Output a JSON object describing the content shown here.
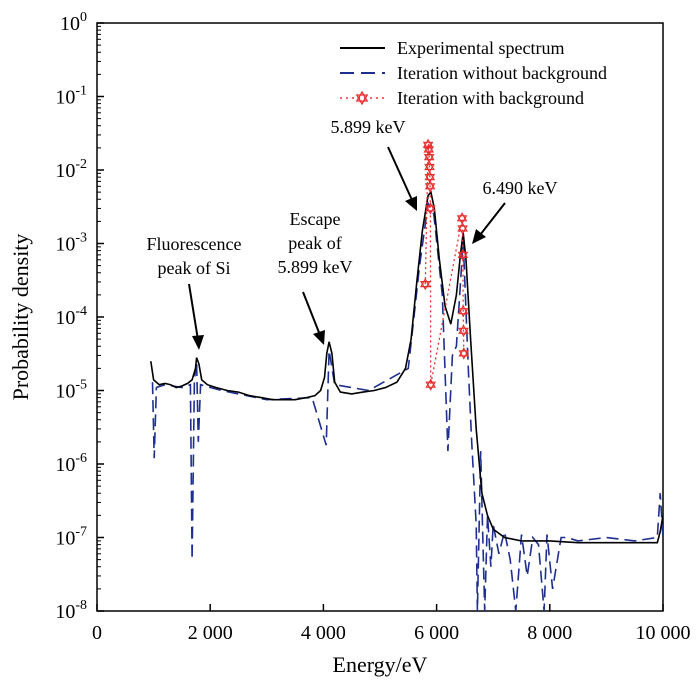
{
  "chart_data": {
    "type": "line",
    "xlabel": "Energy/eV",
    "ylabel": "Probability density",
    "xscale": "linear",
    "yscale": "log",
    "xlim": [
      0,
      10000
    ],
    "ylim": [
      1e-08,
      1
    ],
    "x_ticks": [
      0,
      2000,
      4000,
      6000,
      8000,
      10000
    ],
    "x_tick_labels": [
      "0",
      "2 000",
      "4 000",
      "6 000",
      "8 000",
      "10 000"
    ],
    "y_tick_exponents": [
      0,
      -1,
      -2,
      -3,
      -4,
      -5,
      -6,
      -7,
      -8
    ],
    "y_tick_base": "10",
    "legend_position": "top-right",
    "series": [
      {
        "name": "Experimental spectrum",
        "style": "solid",
        "color": "#000000",
        "points": [
          [
            950,
            2.5e-05
          ],
          [
            1000,
            1.4e-05
          ],
          [
            1100,
            1.2e-05
          ],
          [
            1200,
            1.25e-05
          ],
          [
            1300,
            1.2e-05
          ],
          [
            1400,
            1.1e-05
          ],
          [
            1500,
            1.15e-05
          ],
          [
            1600,
            1.25e-05
          ],
          [
            1680,
            1.4e-05
          ],
          [
            1740,
            2e-05
          ],
          [
            1760,
            2.8e-05
          ],
          [
            1800,
            2.3e-05
          ],
          [
            1850,
            1.4e-05
          ],
          [
            1950,
            1.2e-05
          ],
          [
            2100,
            1.1e-05
          ],
          [
            2300,
            1e-05
          ],
          [
            2500,
            9.5e-06
          ],
          [
            2700,
            8.5e-06
          ],
          [
            2900,
            8e-06
          ],
          [
            3100,
            7.5e-06
          ],
          [
            3300,
            7.5e-06
          ],
          [
            3500,
            7.5e-06
          ],
          [
            3700,
            8e-06
          ],
          [
            3850,
            8.5e-06
          ],
          [
            3950,
            1e-05
          ],
          [
            4020,
            1.5e-05
          ],
          [
            4060,
            3.2e-05
          ],
          [
            4100,
            4.6e-05
          ],
          [
            4150,
            3.2e-05
          ],
          [
            4200,
            1.3e-05
          ],
          [
            4300,
            9.5e-06
          ],
          [
            4500,
            9e-06
          ],
          [
            4700,
            9.5e-06
          ],
          [
            4900,
            1e-05
          ],
          [
            5100,
            1.1e-05
          ],
          [
            5300,
            1.3e-05
          ],
          [
            5450,
            2e-05
          ],
          [
            5550,
            5e-05
          ],
          [
            5650,
            0.0003
          ],
          [
            5750,
            0.0015
          ],
          [
            5850,
            0.0045
          ],
          [
            5900,
            0.005
          ],
          [
            5960,
            0.003
          ],
          [
            6050,
            0.0006
          ],
          [
            6150,
            0.00014
          ],
          [
            6250,
            8e-05
          ],
          [
            6350,
            0.0002
          ],
          [
            6420,
            0.0007
          ],
          [
            6470,
            0.0014
          ],
          [
            6520,
            0.0006
          ],
          [
            6600,
            5e-05
          ],
          [
            6700,
            3e-06
          ],
          [
            6800,
            4e-07
          ],
          [
            6900,
            2e-07
          ],
          [
            7000,
            1.3e-07
          ],
          [
            7200,
            1e-07
          ],
          [
            7500,
            9e-08
          ],
          [
            8000,
            9e-08
          ],
          [
            8500,
            8.5e-08
          ],
          [
            9000,
            8.5e-08
          ],
          [
            9500,
            8.5e-08
          ],
          [
            9900,
            8.5e-08
          ],
          [
            9950,
            1.2e-07
          ],
          [
            10000,
            2e-07
          ]
        ]
      },
      {
        "name": "Iteration without background",
        "style": "dashed",
        "color": "#1f2f8f",
        "points": [
          [
            980,
            1.3e-05
          ],
          [
            1010,
            1.2e-06
          ],
          [
            1050,
            1.1e-05
          ],
          [
            1200,
            1.2e-05
          ],
          [
            1500,
            1.1e-05
          ],
          [
            1650,
            1.2e-05
          ],
          [
            1680,
            5e-08
          ],
          [
            1720,
            1.4e-05
          ],
          [
            1760,
            2.5e-05
          ],
          [
            1790,
            2e-06
          ],
          [
            1830,
            1.2e-05
          ],
          [
            2200,
            1e-05
          ],
          [
            3000,
            7.5e-06
          ],
          [
            3800,
            8e-06
          ],
          [
            4050,
            1.8e-06
          ],
          [
            4100,
            3.5e-05
          ],
          [
            4200,
            1.2e-05
          ],
          [
            4800,
            1e-05
          ],
          [
            5500,
            2e-05
          ],
          [
            5700,
            0.0005
          ],
          [
            5850,
            0.0035
          ],
          [
            5950,
            0.0025
          ],
          [
            6100,
            0.0002
          ],
          [
            6200,
            1.5e-06
          ],
          [
            6280,
            3e-05
          ],
          [
            6350,
            4e-05
          ],
          [
            6470,
            0.0011
          ],
          [
            6560,
            2e-05
          ],
          [
            6620,
            2e-06
          ],
          [
            6700,
            1.5e-07
          ],
          [
            6720,
            1e-08
          ],
          [
            6780,
            1.5e-06
          ],
          [
            6800,
            3e-07
          ],
          [
            6850,
            1e-08
          ],
          [
            6900,
            2e-07
          ],
          [
            6960,
            4e-08
          ],
          [
            7000,
            1.5e-07
          ],
          [
            7100,
            6e-08
          ],
          [
            7200,
            1.2e-07
          ],
          [
            7300,
            5e-08
          ],
          [
            7400,
            1e-08
          ],
          [
            7500,
            1.1e-07
          ],
          [
            7600,
            3e-08
          ],
          [
            7700,
            1e-07
          ],
          [
            7800,
            8e-08
          ],
          [
            7900,
            1e-08
          ],
          [
            7950,
            1.1e-07
          ],
          [
            8050,
            2e-08
          ],
          [
            8200,
            1e-07
          ],
          [
            8300,
            1e-07
          ],
          [
            8500,
            9e-08
          ],
          [
            9000,
            1e-07
          ],
          [
            9500,
            9e-08
          ],
          [
            9900,
            1e-07
          ],
          [
            9950,
            4e-07
          ],
          [
            10000,
            1e-07
          ]
        ]
      },
      {
        "name": "Iteration with background",
        "style": "dotted-markers",
        "color": "#e53030",
        "points": [
          [
            5800,
            0.00028
          ],
          [
            5850,
            0.022
          ],
          [
            5860,
            0.019
          ],
          [
            5870,
            0.015
          ],
          [
            5875,
            0.011
          ],
          [
            5880,
            0.008
          ],
          [
            5885,
            0.006
          ],
          [
            5890,
            0.003
          ],
          [
            5895,
            1.2e-05
          ],
          [
            6450,
            0.0022
          ],
          [
            6460,
            0.0016
          ],
          [
            6465,
            0.0007
          ],
          [
            6470,
            0.00012
          ],
          [
            6475,
            6.5e-05
          ],
          [
            6480,
            3.2e-05
          ]
        ]
      }
    ],
    "annotations": [
      {
        "text_lines": [
          "Fluorescence",
          "peak of Si"
        ]
      },
      {
        "text_lines": [
          "Escape",
          "peak of",
          "5.899 keV"
        ]
      },
      {
        "text_lines": [
          "5.899 keV"
        ]
      },
      {
        "text_lines": [
          "6.490 keV"
        ]
      }
    ]
  }
}
